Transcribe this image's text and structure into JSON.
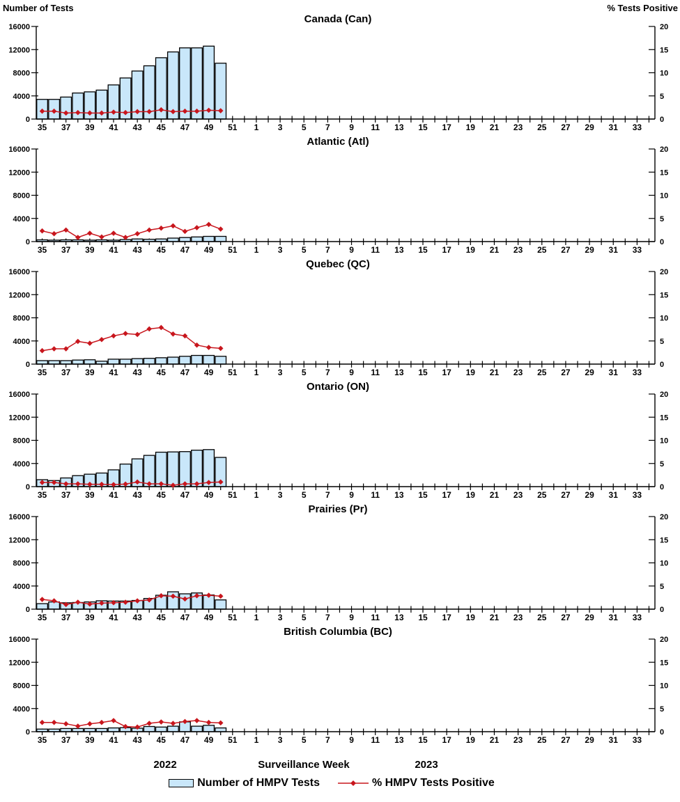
{
  "page": {
    "left_axis_header": "Number of Tests",
    "right_axis_header": "% Tests Positive",
    "xaxis_title": "Surveillance Week",
    "year_left": "2022",
    "year_right": "2023"
  },
  "legend": {
    "bars_label": "Number of HMPV Tests",
    "line_label": "% HMPV Tests Positive"
  },
  "colors": {
    "bar_fill": "#C9E7FA",
    "bar_stroke": "#000000",
    "line": "#C8161D",
    "axis": "#000000"
  },
  "axes": {
    "left_ticks": [
      "0",
      "4000",
      "8000",
      "12000",
      "16000"
    ],
    "left_max": 16000,
    "right_ticks": [
      "0",
      "5",
      "10",
      "15",
      "20"
    ],
    "right_max": 20,
    "weeks": [
      35,
      36,
      37,
      38,
      39,
      40,
      41,
      42,
      43,
      44,
      45,
      46,
      47,
      48,
      49,
      50,
      51,
      52,
      1,
      2,
      3,
      4,
      5,
      6,
      7,
      8,
      9,
      10,
      11,
      12,
      13,
      14,
      15,
      16,
      17,
      18,
      19,
      20,
      21,
      22,
      23,
      24,
      25,
      26,
      27,
      28,
      29,
      30,
      31,
      32,
      33,
      34
    ],
    "data_weeks": [
      35,
      36,
      37,
      38,
      39,
      40,
      41,
      42,
      43,
      44,
      45,
      46,
      47,
      48,
      49,
      50
    ],
    "grid": "off",
    "legend_position": "bottom"
  },
  "chart_data": [
    {
      "id": "canada",
      "type": "bar+line",
      "title": "Canada (Can)",
      "bar_series": "Number of HMPV Tests",
      "line_series": "% HMPV Tests Positive",
      "bar_values": [
        3400,
        3400,
        3800,
        4500,
        4700,
        5000,
        5900,
        7100,
        8300,
        9200,
        10600,
        11600,
        12300,
        12300,
        12600,
        9650
      ],
      "line_values": [
        1.7,
        1.7,
        1.3,
        1.4,
        1.3,
        1.3,
        1.5,
        1.4,
        1.6,
        1.6,
        2.0,
        1.6,
        1.7,
        1.7,
        1.9,
        1.8
      ]
    },
    {
      "id": "atlantic",
      "type": "bar+line",
      "title": "Atlantic (Atl)",
      "bar_series": "Number of HMPV Tests",
      "line_series": "% HMPV Tests Positive",
      "bar_values": [
        300,
        250,
        300,
        300,
        250,
        300,
        250,
        350,
        450,
        400,
        450,
        600,
        700,
        800,
        900,
        900
      ],
      "line_values": [
        2.3,
        1.7,
        2.5,
        0.9,
        1.8,
        1.0,
        1.8,
        0.9,
        1.7,
        2.5,
        2.9,
        3.4,
        2.2,
        3.0,
        3.7,
        2.7
      ]
    },
    {
      "id": "quebec",
      "type": "bar+line",
      "title": "Quebec (QC)",
      "bar_series": "Number of HMPV Tests",
      "line_series": "% HMPV Tests Positive",
      "bar_values": [
        600,
        600,
        600,
        700,
        750,
        500,
        850,
        850,
        950,
        1000,
        1100,
        1200,
        1350,
        1500,
        1500,
        1350
      ],
      "line_values": [
        2.9,
        3.3,
        3.3,
        4.9,
        4.5,
        5.3,
        6.1,
        6.6,
        6.4,
        7.6,
        7.9,
        6.5,
        6.1,
        4.1,
        3.6,
        3.4
      ]
    },
    {
      "id": "ontario",
      "type": "bar+line",
      "title": "Ontario (ON)",
      "bar_series": "Number of HMPV Tests",
      "line_series": "% HMPV Tests Positive",
      "bar_values": [
        1200,
        1050,
        1500,
        1900,
        2150,
        2350,
        2900,
        3900,
        4800,
        5400,
        5950,
        6000,
        6050,
        6300,
        6400,
        5050
      ],
      "line_values": [
        0.9,
        0.9,
        0.6,
        0.6,
        0.5,
        0.5,
        0.45,
        0.55,
        1.0,
        0.6,
        0.6,
        0.3,
        0.6,
        0.6,
        0.9,
        1.0
      ]
    },
    {
      "id": "prairies",
      "type": "bar+line",
      "title": "Prairies (Pr)",
      "bar_series": "Number of HMPV Tests",
      "line_series": "% HMPV Tests Positive",
      "bar_values": [
        950,
        1250,
        1100,
        1150,
        1250,
        1450,
        1400,
        1400,
        1500,
        1850,
        2400,
        3000,
        2650,
        2800,
        2450,
        1600
      ],
      "line_values": [
        2.1,
        1.8,
        1.0,
        1.5,
        1.1,
        1.3,
        1.4,
        1.5,
        1.8,
        2.0,
        2.9,
        2.8,
        2.2,
        2.9,
        3.0,
        2.8
      ]
    },
    {
      "id": "bc",
      "type": "bar+line",
      "title": "British Columbia (BC)",
      "bar_series": "Number of HMPV Tests",
      "line_series": "% HMPV Tests Positive",
      "bar_values": [
        450,
        450,
        550,
        550,
        550,
        550,
        650,
        700,
        600,
        900,
        800,
        950,
        1700,
        950,
        1100,
        650
      ],
      "line_values": [
        2.0,
        2.0,
        1.7,
        1.2,
        1.7,
        2.0,
        2.4,
        1.1,
        1.0,
        1.8,
        2.1,
        1.8,
        2.2,
        2.4,
        2.0,
        1.9
      ]
    }
  ]
}
